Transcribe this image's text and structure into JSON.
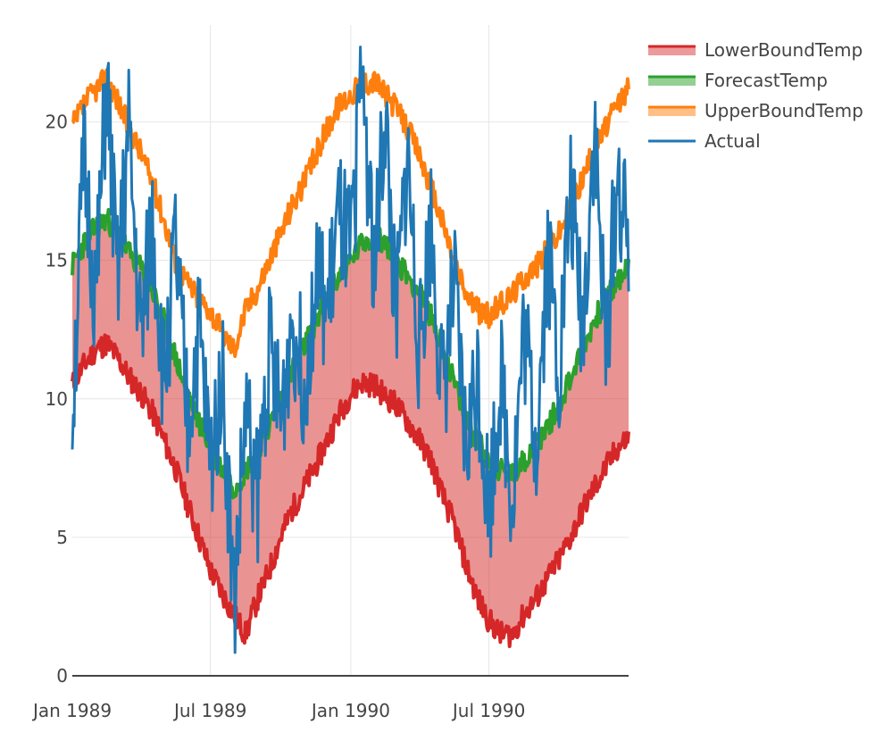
{
  "chart_data": {
    "type": "line",
    "title": "",
    "xlabel": "",
    "ylabel": "",
    "x_range": [
      "1989-01-01",
      "1990-12-31"
    ],
    "ylim": [
      0,
      23.5
    ],
    "grid": true,
    "legend_position": "top-right",
    "x_ticks": [
      {
        "date": "1989-01-01",
        "label": "Jan 1989"
      },
      {
        "date": "1989-07-01",
        "label": "Jul 1989"
      },
      {
        "date": "1990-01-01",
        "label": "Jan 1990"
      },
      {
        "date": "1990-07-01",
        "label": "Jul 1990"
      }
    ],
    "y_ticks": [
      0,
      5,
      10,
      15,
      20
    ],
    "x": [
      "1989-01-01",
      "1989-01-16",
      "1989-02-01",
      "1989-02-15",
      "1989-03-01",
      "1989-03-16",
      "1989-04-01",
      "1989-04-16",
      "1989-05-01",
      "1989-05-16",
      "1989-06-01",
      "1989-06-16",
      "1989-07-01",
      "1989-07-16",
      "1989-08-01",
      "1989-08-16",
      "1989-09-01",
      "1989-09-16",
      "1989-10-01",
      "1989-10-16",
      "1989-11-01",
      "1989-11-16",
      "1989-12-01",
      "1989-12-16",
      "1990-01-01",
      "1990-01-16",
      "1990-02-01",
      "1990-02-15",
      "1990-03-01",
      "1990-03-16",
      "1990-04-01",
      "1990-04-16",
      "1990-05-01",
      "1990-05-16",
      "1990-06-01",
      "1990-06-16",
      "1990-07-01",
      "1990-07-16",
      "1990-08-01",
      "1990-08-16",
      "1990-09-01",
      "1990-09-16",
      "1990-10-01",
      "1990-10-16",
      "1990-11-01",
      "1990-11-16",
      "1990-12-01",
      "1990-12-16",
      "1990-12-31"
    ],
    "series": [
      {
        "name": "LowerBoundTemp",
        "color": "#d62728",
        "fill_color": "rgba(214,39,40,0.5)",
        "fill": "tonexty",
        "values": [
          10.5,
          11.2,
          11.8,
          12.0,
          11.5,
          10.8,
          10.2,
          9.5,
          8.5,
          7.5,
          6.2,
          5.0,
          3.8,
          3.0,
          2.2,
          1.5,
          2.8,
          3.8,
          5.0,
          6.0,
          6.8,
          7.6,
          8.5,
          9.4,
          10.2,
          10.6,
          10.5,
          10.1,
          9.8,
          9.2,
          8.5,
          7.8,
          6.5,
          5.5,
          4.0,
          2.8,
          2.0,
          1.5,
          1.5,
          2.2,
          2.8,
          3.5,
          4.2,
          5.0,
          6.0,
          6.8,
          7.5,
          8.2,
          8.6
        ]
      },
      {
        "name": "ForecastTemp",
        "color": "#2ca02c",
        "fill_color": "rgba(44,160,44,0.5)",
        "fill": "tonexty",
        "values": [
          14.8,
          15.6,
          16.2,
          16.5,
          16.0,
          15.3,
          14.7,
          13.9,
          12.8,
          11.5,
          10.2,
          9.2,
          8.2,
          7.5,
          6.8,
          7.4,
          8.2,
          9.0,
          10.0,
          11.0,
          11.9,
          12.8,
          13.6,
          14.4,
          15.0,
          15.6,
          15.9,
          15.6,
          15.0,
          14.5,
          13.8,
          13.0,
          11.9,
          10.6,
          9.3,
          8.5,
          7.8,
          7.4,
          7.2,
          7.8,
          8.4,
          9.0,
          9.8,
          10.8,
          11.8,
          12.8,
          13.6,
          14.2,
          14.8
        ]
      },
      {
        "name": "UpperBoundTemp",
        "color": "#ff7f0e",
        "fill_color": "rgba(255,127,14,0.5)",
        "fill": "tonexty",
        "values": [
          19.8,
          20.6,
          21.2,
          21.6,
          20.8,
          19.8,
          18.9,
          17.8,
          16.5,
          15.0,
          14.2,
          13.6,
          13.2,
          12.4,
          11.8,
          13.2,
          14.0,
          15.0,
          16.0,
          17.0,
          17.8,
          18.8,
          19.8,
          20.6,
          21.0,
          21.4,
          21.5,
          21.0,
          20.5,
          19.8,
          18.8,
          17.6,
          16.4,
          15.0,
          13.8,
          13.2,
          13.0,
          13.4,
          13.8,
          14.4,
          14.8,
          15.4,
          16.0,
          17.0,
          18.0,
          19.0,
          19.8,
          20.6,
          21.2
        ]
      },
      {
        "name": "Actual",
        "color": "#1f77b4",
        "fill": "none",
        "values": [
          9.5,
          18.5,
          13.5,
          21.5,
          14.0,
          19.5,
          12.0,
          16.5,
          10.5,
          15.5,
          9.0,
          12.5,
          7.5,
          11.2,
          2.5,
          9.5,
          6.5,
          12.0,
          9.0,
          13.0,
          10.5,
          14.5,
          13.0,
          16.5,
          15.0,
          22.0,
          14.5,
          20.5,
          12.5,
          19.0,
          11.5,
          16.5,
          10.0,
          14.0,
          8.0,
          11.0,
          6.0,
          10.8,
          6.5,
          12.5,
          8.5,
          15.5,
          11.0,
          17.5,
          12.5,
          20.0,
          11.5,
          18.0,
          15.5
        ]
      }
    ]
  },
  "legend": {
    "items": [
      {
        "label": "LowerBoundTemp",
        "line_color": "#d62728",
        "fill_color": "#ec9a9b"
      },
      {
        "label": "ForecastTemp",
        "line_color": "#2ca02c",
        "fill_color": "#94d094"
      },
      {
        "label": "UpperBoundTemp",
        "line_color": "#ff7f0e",
        "fill_color": "#ffbf86"
      },
      {
        "label": "Actual",
        "line_color": "#1f77b4",
        "fill_color": ""
      }
    ]
  }
}
